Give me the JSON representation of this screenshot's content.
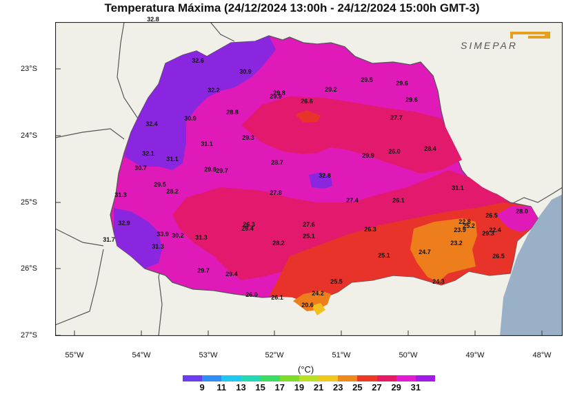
{
  "title": "Temperatura Máxima (24/12/2024 13:00h - 24/12/2024 15:00h GMT-3)",
  "logo": {
    "text": "SIMEPAR",
    "color": "#e6a020"
  },
  "y_axis_labels": [
    "23°S",
    "24°S",
    "25°S",
    "26°S",
    "27°S"
  ],
  "x_axis_labels": [
    "55°W",
    "54°W",
    "53°W",
    "52°W",
    "51°W",
    "50°W",
    "49°W",
    "48°W"
  ],
  "colorbar": {
    "unit": "(°C)",
    "labels": [
      "9",
      "11",
      "13",
      "15",
      "17",
      "19",
      "21",
      "23",
      "25",
      "27",
      "29",
      "31"
    ],
    "colors": [
      "#6a3df0",
      "#2f8df5",
      "#1fc8f0",
      "#24d9b4",
      "#3ddc62",
      "#7ddd2a",
      "#bce026",
      "#f0c81e",
      "#ee8a1c",
      "#ec3a26",
      "#e81a68",
      "#e21ad2",
      "#a11ae8"
    ]
  },
  "colors": {
    "ocean": "#9ab0c6",
    "land": "#f0f0e8",
    "border": "#555555"
  },
  "point_values": [
    {
      "v": "32.8"
    },
    {
      "v": "32.6"
    },
    {
      "v": "30.9"
    },
    {
      "v": "32.2"
    },
    {
      "v": "29.8"
    },
    {
      "v": "29.9"
    },
    {
      "v": "29.2"
    },
    {
      "v": "29.5"
    },
    {
      "v": "29.6"
    },
    {
      "v": "29.6"
    },
    {
      "v": "26.6"
    },
    {
      "v": "28.8"
    },
    {
      "v": "27.7"
    },
    {
      "v": "32.4"
    },
    {
      "v": "30.9"
    },
    {
      "v": "29.3"
    },
    {
      "v": "31.1"
    },
    {
      "v": "32.1"
    },
    {
      "v": "31.1"
    },
    {
      "v": "26.0"
    },
    {
      "v": "28.4"
    },
    {
      "v": "29.9"
    },
    {
      "v": "28.7"
    },
    {
      "v": "30.7"
    },
    {
      "v": "29.8"
    },
    {
      "v": "29.7"
    },
    {
      "v": "32.8"
    },
    {
      "v": "29.5"
    },
    {
      "v": "28.2"
    },
    {
      "v": "31.3"
    },
    {
      "v": "27.8"
    },
    {
      "v": "27.4"
    },
    {
      "v": "26.1"
    },
    {
      "v": "31.1"
    },
    {
      "v": "32.9"
    },
    {
      "v": "26.3"
    },
    {
      "v": "29.4"
    },
    {
      "v": "27.6"
    },
    {
      "v": "25.1"
    },
    {
      "v": "26.3"
    },
    {
      "v": "22.8"
    },
    {
      "v": "23.9"
    },
    {
      "v": "25.2"
    },
    {
      "v": "26.5"
    },
    {
      "v": "28.0"
    },
    {
      "v": "22.4"
    },
    {
      "v": "29.3"
    },
    {
      "v": "33.9"
    },
    {
      "v": "30.2"
    },
    {
      "v": "31.3"
    },
    {
      "v": "31.3"
    },
    {
      "v": "31.7"
    },
    {
      "v": "28.2"
    },
    {
      "v": "23.2"
    },
    {
      "v": "24.7"
    },
    {
      "v": "25.1"
    },
    {
      "v": "26.5"
    },
    {
      "v": "29.7"
    },
    {
      "v": "29.4"
    },
    {
      "v": "25.5"
    },
    {
      "v": "24.2"
    },
    {
      "v": "26.0"
    },
    {
      "v": "26.1"
    },
    {
      "v": "20.6"
    },
    {
      "v": "24.3"
    }
  ]
}
